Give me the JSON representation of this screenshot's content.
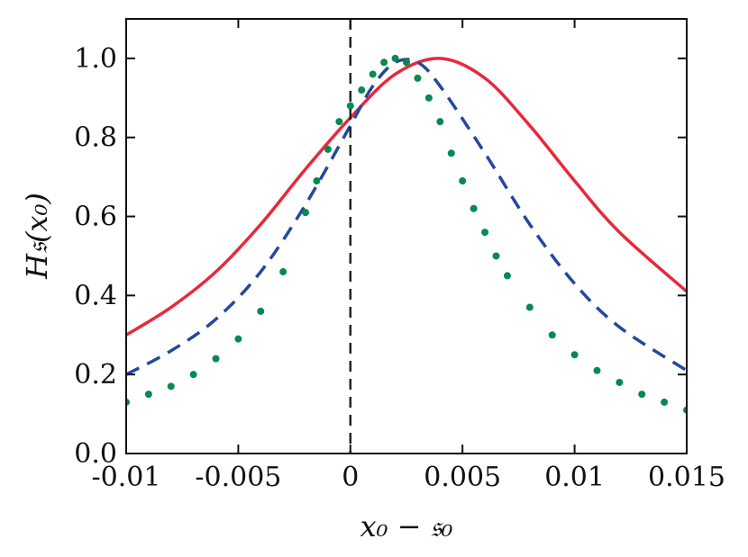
{
  "chart_data": {
    "type": "line",
    "xlabel": "x₀ − 𝔰₀",
    "ylabel": "H𝔰(x₀)",
    "xlim": [
      -0.01,
      0.015
    ],
    "ylim": [
      0.0,
      1.1
    ],
    "x_ticks": [
      -0.01,
      -0.005,
      0,
      0.005,
      0.01,
      0.015
    ],
    "x_tick_labels": [
      "-0.01",
      "-0.005",
      "0",
      "0.005",
      "0.01",
      "0.015"
    ],
    "y_ticks": [
      0.0,
      0.2,
      0.4,
      0.6,
      0.8,
      1.0
    ],
    "y_tick_labels": [
      "0.0",
      "0.2",
      "0.4",
      "0.6",
      "0.8",
      "1.0"
    ],
    "grid": false,
    "reference_line": {
      "x": 0,
      "style": "dashed",
      "color": "#222222"
    },
    "series": [
      {
        "style": "solid",
        "color": "#e8283b",
        "x": [
          -0.01,
          -0.008,
          -0.006,
          -0.004,
          -0.002,
          0,
          0.002,
          0.004,
          0.006,
          0.008,
          0.01,
          0.012,
          0.015
        ],
        "y": [
          0.3,
          0.37,
          0.46,
          0.58,
          0.72,
          0.85,
          0.96,
          1.0,
          0.95,
          0.83,
          0.69,
          0.56,
          0.41
        ]
      },
      {
        "style": "dashed",
        "color": "#24489c",
        "x": [
          -0.01,
          -0.008,
          -0.006,
          -0.004,
          -0.002,
          0,
          0.001,
          0.002,
          0.003,
          0.004,
          0.006,
          0.008,
          0.01,
          0.012,
          0.015
        ],
        "y": [
          0.2,
          0.26,
          0.34,
          0.46,
          0.63,
          0.83,
          0.93,
          0.99,
          0.99,
          0.93,
          0.76,
          0.58,
          0.43,
          0.32,
          0.21
        ]
      },
      {
        "style": "dotted",
        "color": "#058a4f",
        "x": [
          -0.01,
          -0.009,
          -0.008,
          -0.007,
          -0.006,
          -0.005,
          -0.004,
          -0.003,
          -0.002,
          -0.0015,
          -0.001,
          -0.0005,
          0,
          0.0005,
          0.001,
          0.0015,
          0.002,
          0.0025,
          0.003,
          0.0035,
          0.004,
          0.0045,
          0.005,
          0.0055,
          0.006,
          0.0065,
          0.007,
          0.008,
          0.009,
          0.01,
          0.011,
          0.012,
          0.013,
          0.014,
          0.015
        ],
        "y": [
          0.13,
          0.15,
          0.17,
          0.2,
          0.24,
          0.29,
          0.36,
          0.46,
          0.61,
          0.69,
          0.77,
          0.84,
          0.88,
          0.92,
          0.96,
          0.99,
          1.0,
          0.99,
          0.95,
          0.9,
          0.84,
          0.76,
          0.69,
          0.62,
          0.56,
          0.5,
          0.45,
          0.37,
          0.3,
          0.25,
          0.21,
          0.18,
          0.15,
          0.13,
          0.11
        ]
      }
    ]
  }
}
